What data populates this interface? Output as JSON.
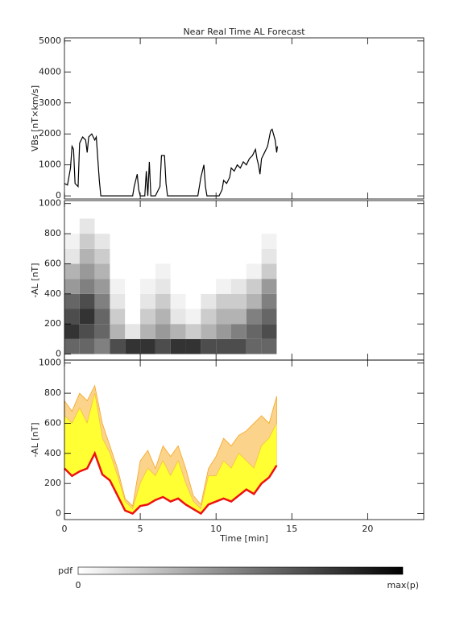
{
  "chart_data": [
    {
      "type": "line",
      "title": "Near Real Time AL Forecast",
      "ylabel": "VBs [nT×km/s]",
      "xlim": [
        0,
        23.7
      ],
      "xticks": [
        0,
        5,
        10,
        15,
        20
      ],
      "ylim": [
        -100,
        5100
      ],
      "yticks": [
        0,
        1000,
        2000,
        3000,
        4000,
        5000
      ],
      "x": [
        0,
        0.2,
        0.4,
        0.5,
        0.6,
        0.7,
        0.9,
        1.0,
        1.2,
        1.4,
        1.5,
        1.6,
        1.8,
        2.0,
        2.1,
        2.2,
        2.3,
        2.4,
        3.0,
        4.5,
        4.6,
        4.8,
        4.9,
        5.0,
        5.3,
        5.4,
        5.5,
        5.6,
        5.7,
        6.0,
        6.3,
        6.4,
        6.6,
        6.7,
        6.8,
        8.8,
        9.0,
        9.2,
        9.3,
        9.4,
        10.2,
        10.4,
        10.5,
        10.7,
        10.9,
        11.0,
        11.2,
        11.4,
        11.6,
        11.8,
        12.0,
        12.2,
        12.4,
        12.6,
        12.7,
        12.8,
        12.9,
        13.0,
        13.2,
        13.4,
        13.6,
        13.7,
        13.9,
        14.0,
        14.05
      ],
      "series": [
        {
          "color": "#000000",
          "values": [
            400,
            350,
            900,
            1600,
            1500,
            400,
            300,
            1700,
            1900,
            1800,
            1400,
            1900,
            2000,
            1800,
            1900,
            1200,
            500,
            0,
            0,
            0,
            300,
            700,
            200,
            0,
            0,
            800,
            0,
            1100,
            0,
            0,
            300,
            1300,
            1300,
            400,
            0,
            0,
            600,
            1000,
            300,
            0,
            0,
            200,
            500,
            400,
            600,
            900,
            800,
            1000,
            900,
            1100,
            1000,
            1200,
            1300,
            1500,
            1200,
            1000,
            700,
            1200,
            1400,
            1600,
            2100,
            2150,
            1800,
            1400,
            1600
          ]
        }
      ]
    },
    {
      "type": "heatmap",
      "ylabel": "-AL [nT]",
      "xlim": [
        0,
        23.7
      ],
      "xticks": [
        0,
        5,
        10,
        15,
        20
      ],
      "ylim": [
        -40,
        1020
      ],
      "yticks": [
        0,
        200,
        400,
        600,
        800,
        1000
      ],
      "time_bins": [
        0,
        1,
        2,
        3,
        4,
        5,
        6,
        7,
        8,
        9,
        10,
        11,
        12,
        13,
        14
      ],
      "al_bins": [
        0,
        100,
        200,
        300,
        400,
        500,
        600,
        700,
        800,
        900
      ],
      "pdf": [
        [
          0.6,
          0.8,
          0.7,
          0.6,
          0.4,
          0.3,
          0.1,
          0.05,
          0
        ],
        [
          0.6,
          0.7,
          0.8,
          0.7,
          0.5,
          0.4,
          0.3,
          0.2,
          0.1
        ],
        [
          0.5,
          0.6,
          0.6,
          0.5,
          0.4,
          0.3,
          0.2,
          0.1,
          0
        ],
        [
          0.7,
          0.3,
          0.2,
          0.1,
          0.05,
          0,
          0,
          0,
          0
        ],
        [
          0.8,
          0.1,
          0,
          0,
          0,
          0,
          0,
          0,
          0
        ],
        [
          0.8,
          0.3,
          0.2,
          0.1,
          0.05,
          0,
          0,
          0,
          0
        ],
        [
          0.7,
          0.4,
          0.3,
          0.2,
          0.1,
          0.05,
          0,
          0,
          0
        ],
        [
          0.8,
          0.3,
          0.1,
          0.05,
          0,
          0,
          0,
          0,
          0
        ],
        [
          0.8,
          0.2,
          0.05,
          0,
          0,
          0,
          0,
          0,
          0
        ],
        [
          0.7,
          0.3,
          0.2,
          0.1,
          0,
          0,
          0,
          0,
          0
        ],
        [
          0.7,
          0.4,
          0.3,
          0.2,
          0.05,
          0,
          0,
          0,
          0
        ],
        [
          0.7,
          0.5,
          0.3,
          0.2,
          0.1,
          0,
          0,
          0,
          0
        ],
        [
          0.6,
          0.6,
          0.5,
          0.3,
          0.2,
          0.05,
          0,
          0,
          0
        ],
        [
          0.6,
          0.7,
          0.6,
          0.5,
          0.4,
          0.2,
          0.1,
          0.05,
          0
        ]
      ],
      "colorbar": {
        "label": "pdf",
        "min_label": "0",
        "max_label": "max(p)"
      }
    },
    {
      "type": "band",
      "ylabel": "-AL [nT]",
      "xlabel": "Time [min]",
      "xlim": [
        0,
        23.7
      ],
      "xticks": [
        0,
        5,
        10,
        15,
        20
      ],
      "ylim": [
        -40,
        1020
      ],
      "yticks": [
        0,
        200,
        400,
        600,
        800,
        1000
      ],
      "x": [
        0,
        0.5,
        1,
        1.5,
        2,
        2.5,
        3,
        3.5,
        4,
        4.5,
        5,
        5.5,
        6,
        6.5,
        7,
        7.5,
        8,
        8.5,
        9,
        9.5,
        10,
        10.5,
        11,
        11.5,
        12,
        12.5,
        13,
        13.5,
        14
      ],
      "series": [
        {
          "color": "#f5a623",
          "values": [
            750,
            680,
            800,
            750,
            850,
            600,
            450,
            300,
            100,
            50,
            350,
            420,
            300,
            450,
            380,
            450,
            300,
            120,
            60,
            300,
            380,
            500,
            450,
            520,
            550,
            600,
            650,
            600,
            780
          ]
        },
        {
          "color": "#ffff33",
          "values": [
            650,
            600,
            700,
            600,
            800,
            500,
            400,
            250,
            80,
            30,
            200,
            300,
            250,
            350,
            250,
            350,
            200,
            80,
            30,
            250,
            250,
            350,
            300,
            400,
            350,
            300,
            450,
            500,
            600
          ]
        },
        {
          "color": "#ee1111",
          "values": [
            300,
            250,
            280,
            300,
            400,
            260,
            220,
            120,
            20,
            0,
            50,
            60,
            90,
            110,
            80,
            100,
            60,
            30,
            0,
            60,
            80,
            100,
            80,
            120,
            160,
            130,
            200,
            240,
            320
          ]
        }
      ]
    }
  ]
}
